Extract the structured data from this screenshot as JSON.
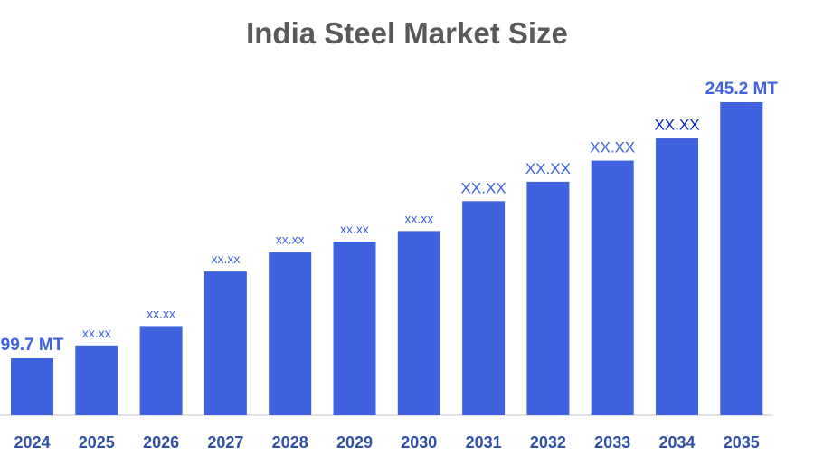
{
  "chart_data": {
    "type": "bar",
    "title": "India Steel Market Size",
    "xlabel": "",
    "ylabel": "",
    "categories": [
      "2024",
      "2025",
      "2026",
      "2027",
      "2028",
      "2029",
      "2030",
      "2031",
      "2032",
      "2033",
      "2034",
      "2035"
    ],
    "values": [
      99.7,
      107,
      118,
      149,
      160,
      166,
      172,
      189,
      200,
      212,
      225,
      245.2
    ],
    "data_labels": [
      "99.7 MT",
      "xx.xx",
      "xx.xx",
      "xx.xx",
      "xx.xx",
      "xx.xx",
      "xx.xx",
      "XX.XX",
      "XX.XX",
      "XX.XX",
      "XX.XX",
      "245.2 MT"
    ],
    "ylim": [
      0,
      250
    ],
    "grid": false,
    "legend": "none",
    "colors": {
      "bar": "#3f63de",
      "label": "#3f63de",
      "label_highlight": "#0a22c8",
      "axis_text": "#2f4fa8",
      "title": "#595959",
      "baseline": "#d9d9d9"
    }
  }
}
